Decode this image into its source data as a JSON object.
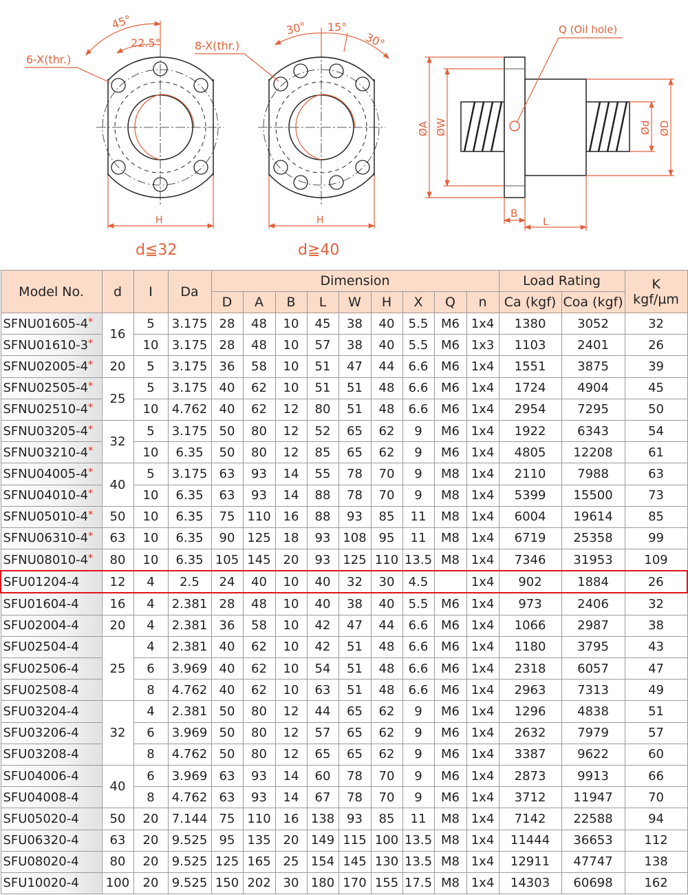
{
  "drawings": {
    "left": {
      "angle_outer": "45°",
      "angle_inner": "22.5°",
      "holes_label": "6-X(thr.)",
      "width_label": "H",
      "condition": "d≦32"
    },
    "right": {
      "angle_left": "30°",
      "angle_mid": "15°",
      "angle_right": "30°",
      "holes_label": "8-X(thr.)",
      "width_label": "H",
      "condition": "d≧40"
    },
    "side": {
      "oil_hole": "Q  (Oil hole)",
      "dia_A": "ØA",
      "dia_W": "ØW",
      "dia_d": "Ød",
      "dia_D": "ØD",
      "len_B": "B",
      "len_L": "L"
    },
    "colors": {
      "dimension": "#e0623c",
      "header": "#fbdcc9",
      "highlight": "#e0121b",
      "star": "#d8261c"
    }
  },
  "table": {
    "headers": {
      "model": "Model No.",
      "d": "d",
      "I": "I",
      "Da": "Da",
      "dimension": "Dimension",
      "load_rating": "Load Rating",
      "K": "K",
      "K_unit": "kgf/µm",
      "dim_cols": [
        "D",
        "A",
        "B",
        "L",
        "W",
        "H",
        "X",
        "Q",
        "n"
      ],
      "load_cols": [
        "Ca (kgf)",
        "Coa (kgf)"
      ]
    },
    "star": "*",
    "highlighted_model": "SFU01204-4",
    "rows": [
      {
        "model": "SFNU01605-4",
        "star": true,
        "d": "16",
        "I": "5",
        "Da": "3.175",
        "D": "28",
        "A": "48",
        "B": "10",
        "L": "45",
        "W": "38",
        "H": "40",
        "X": "5.5",
        "Q": "M6",
        "n": "1x4",
        "Ca": "1380",
        "Coa": "3052",
        "K": "32"
      },
      {
        "model": "SFNU01610-3",
        "star": true,
        "d": "16",
        "I": "10",
        "Da": "3.175",
        "D": "28",
        "A": "48",
        "B": "10",
        "L": "57",
        "W": "38",
        "H": "40",
        "X": "5.5",
        "Q": "M6",
        "n": "1x3",
        "Ca": "1103",
        "Coa": "2401",
        "K": "26"
      },
      {
        "model": "SFNU02005-4",
        "star": true,
        "d": "20",
        "I": "5",
        "Da": "3.175",
        "D": "36",
        "A": "58",
        "B": "10",
        "L": "51",
        "W": "47",
        "H": "44",
        "X": "6.6",
        "Q": "M6",
        "n": "1x4",
        "Ca": "1551",
        "Coa": "3875",
        "K": "39"
      },
      {
        "model": "SFNU02505-4",
        "star": true,
        "d": "25",
        "I": "5",
        "Da": "3.175",
        "D": "40",
        "A": "62",
        "B": "10",
        "L": "51",
        "W": "51",
        "H": "48",
        "X": "6.6",
        "Q": "M6",
        "n": "1x4",
        "Ca": "1724",
        "Coa": "4904",
        "K": "45"
      },
      {
        "model": "SFNU02510-4",
        "star": true,
        "d": "25",
        "I": "10",
        "Da": "4.762",
        "D": "40",
        "A": "62",
        "B": "12",
        "L": "80",
        "W": "51",
        "H": "48",
        "X": "6.6",
        "Q": "M6",
        "n": "1x4",
        "Ca": "2954",
        "Coa": "7295",
        "K": "50"
      },
      {
        "model": "SFNU03205-4",
        "star": true,
        "d": "32",
        "I": "5",
        "Da": "3.175",
        "D": "50",
        "A": "80",
        "B": "12",
        "L": "52",
        "W": "65",
        "H": "62",
        "X": "9",
        "Q": "M6",
        "n": "1x4",
        "Ca": "1922",
        "Coa": "6343",
        "K": "54"
      },
      {
        "model": "SFNU03210-4",
        "star": true,
        "d": "32",
        "I": "10",
        "Da": "6.35",
        "D": "50",
        "A": "80",
        "B": "12",
        "L": "85",
        "W": "65",
        "H": "62",
        "X": "9",
        "Q": "M6",
        "n": "1x4",
        "Ca": "4805",
        "Coa": "12208",
        "K": "61"
      },
      {
        "model": "SFNU04005-4",
        "star": true,
        "d": "40",
        "I": "5",
        "Da": "3.175",
        "D": "63",
        "A": "93",
        "B": "14",
        "L": "55",
        "W": "78",
        "H": "70",
        "X": "9",
        "Q": "M8",
        "n": "1x4",
        "Ca": "2110",
        "Coa": "7988",
        "K": "63"
      },
      {
        "model": "SFNU04010-4",
        "star": true,
        "d": "40",
        "I": "10",
        "Da": "6.35",
        "D": "63",
        "A": "93",
        "B": "14",
        "L": "88",
        "W": "78",
        "H": "70",
        "X": "9",
        "Q": "M8",
        "n": "1x4",
        "Ca": "5399",
        "Coa": "15500",
        "K": "73"
      },
      {
        "model": "SFNU05010-4",
        "star": true,
        "d": "50",
        "I": "10",
        "Da": "6.35",
        "D": "75",
        "A": "110",
        "B": "16",
        "L": "88",
        "W": "93",
        "H": "85",
        "X": "11",
        "Q": "M8",
        "n": "1x4",
        "Ca": "6004",
        "Coa": "19614",
        "K": "85"
      },
      {
        "model": "SFNU06310-4",
        "star": true,
        "d": "63",
        "I": "10",
        "Da": "6.35",
        "D": "90",
        "A": "125",
        "B": "18",
        "L": "93",
        "W": "108",
        "H": "95",
        "X": "11",
        "Q": "M8",
        "n": "1x4",
        "Ca": "6719",
        "Coa": "25358",
        "K": "99"
      },
      {
        "model": "SFNU08010-4",
        "star": true,
        "d": "80",
        "I": "10",
        "Da": "6.35",
        "D": "105",
        "A": "145",
        "B": "20",
        "L": "93",
        "W": "125",
        "H": "110",
        "X": "13.5",
        "Q": "M8",
        "n": "1x4",
        "Ca": "7346",
        "Coa": "31953",
        "K": "109"
      },
      {
        "model": "SFU01204-4",
        "star": false,
        "d": "12",
        "I": "4",
        "Da": "2.5",
        "D": "24",
        "A": "40",
        "B": "10",
        "L": "40",
        "W": "32",
        "H": "30",
        "X": "4.5",
        "Q": "",
        "n": "1x4",
        "Ca": "902",
        "Coa": "1884",
        "K": "26"
      },
      {
        "model": "SFU01604-4",
        "star": false,
        "d": "16",
        "I": "4",
        "Da": "2.381",
        "D": "28",
        "A": "48",
        "B": "10",
        "L": "40",
        "W": "38",
        "H": "40",
        "X": "5.5",
        "Q": "M6",
        "n": "1x4",
        "Ca": "973",
        "Coa": "2406",
        "K": "32"
      },
      {
        "model": "SFU02004-4",
        "star": false,
        "d": "20",
        "I": "4",
        "Da": "2.381",
        "D": "36",
        "A": "58",
        "B": "10",
        "L": "42",
        "W": "47",
        "H": "44",
        "X": "6.6",
        "Q": "M6",
        "n": "1x4",
        "Ca": "1066",
        "Coa": "2987",
        "K": "38"
      },
      {
        "model": "SFU02504-4",
        "star": false,
        "d": "25",
        "I": "4",
        "Da": "2.381",
        "D": "40",
        "A": "62",
        "B": "10",
        "L": "42",
        "W": "51",
        "H": "48",
        "X": "6.6",
        "Q": "M6",
        "n": "1x4",
        "Ca": "1180",
        "Coa": "3795",
        "K": "43"
      },
      {
        "model": "SFU02506-4",
        "star": false,
        "d": "25",
        "I": "6",
        "Da": "3.969",
        "D": "40",
        "A": "62",
        "B": "10",
        "L": "54",
        "W": "51",
        "H": "48",
        "X": "6.6",
        "Q": "M6",
        "n": "1x4",
        "Ca": "2318",
        "Coa": "6057",
        "K": "47"
      },
      {
        "model": "SFU02508-4",
        "star": false,
        "d": "25",
        "I": "8",
        "Da": "4.762",
        "D": "40",
        "A": "62",
        "B": "10",
        "L": "63",
        "W": "51",
        "H": "48",
        "X": "6.6",
        "Q": "M6",
        "n": "1x4",
        "Ca": "2963",
        "Coa": "7313",
        "K": "49"
      },
      {
        "model": "SFU03204-4",
        "star": false,
        "d": "32",
        "I": "4",
        "Da": "2.381",
        "D": "50",
        "A": "80",
        "B": "12",
        "L": "44",
        "W": "65",
        "H": "62",
        "X": "9",
        "Q": "M6",
        "n": "1x4",
        "Ca": "1296",
        "Coa": "4838",
        "K": "51"
      },
      {
        "model": "SFU03206-4",
        "star": false,
        "d": "32",
        "I": "6",
        "Da": "3.969",
        "D": "50",
        "A": "80",
        "B": "12",
        "L": "57",
        "W": "65",
        "H": "62",
        "X": "9",
        "Q": "M6",
        "n": "1x4",
        "Ca": "2632",
        "Coa": "7979",
        "K": "57"
      },
      {
        "model": "SFU03208-4",
        "star": false,
        "d": "32",
        "I": "8",
        "Da": "4.762",
        "D": "50",
        "A": "80",
        "B": "12",
        "L": "65",
        "W": "65",
        "H": "62",
        "X": "9",
        "Q": "M6",
        "n": "1x4",
        "Ca": "3387",
        "Coa": "9622",
        "K": "60"
      },
      {
        "model": "SFU04006-4",
        "star": false,
        "d": "40",
        "I": "6",
        "Da": "3.969",
        "D": "63",
        "A": "93",
        "B": "14",
        "L": "60",
        "W": "78",
        "H": "70",
        "X": "9",
        "Q": "M6",
        "n": "1x4",
        "Ca": "2873",
        "Coa": "9913",
        "K": "66"
      },
      {
        "model": "SFU04008-4",
        "star": false,
        "d": "40",
        "I": "8",
        "Da": "4.762",
        "D": "63",
        "A": "93",
        "B": "14",
        "L": "67",
        "W": "78",
        "H": "70",
        "X": "9",
        "Q": "M6",
        "n": "1x4",
        "Ca": "3712",
        "Coa": "11947",
        "K": "70"
      },
      {
        "model": "SFU05020-4",
        "star": false,
        "d": "50",
        "I": "20",
        "Da": "7.144",
        "D": "75",
        "A": "110",
        "B": "16",
        "L": "138",
        "W": "93",
        "H": "85",
        "X": "11",
        "Q": "M8",
        "n": "1x4",
        "Ca": "7142",
        "Coa": "22588",
        "K": "94"
      },
      {
        "model": "SFU06320-4",
        "star": false,
        "d": "63",
        "I": "20",
        "Da": "9.525",
        "D": "95",
        "A": "135",
        "B": "20",
        "L": "149",
        "W": "115",
        "H": "100",
        "X": "13.5",
        "Q": "M8",
        "n": "1x4",
        "Ca": "11444",
        "Coa": "36653",
        "K": "112"
      },
      {
        "model": "SFU08020-4",
        "star": false,
        "d": "80",
        "I": "20",
        "Da": "9.525",
        "D": "125",
        "A": "165",
        "B": "25",
        "L": "154",
        "W": "145",
        "H": "130",
        "X": "13.5",
        "Q": "M8",
        "n": "1x4",
        "Ca": "12911",
        "Coa": "47747",
        "K": "138"
      },
      {
        "model": "SFU10020-4",
        "star": false,
        "d": "100",
        "I": "20",
        "Da": "9.525",
        "D": "150",
        "A": "202",
        "B": "30",
        "L": "180",
        "W": "170",
        "H": "155",
        "X": "17.5",
        "Q": "M8",
        "n": "1x4",
        "Ca": "14303",
        "Coa": "60698",
        "K": "162"
      }
    ]
  }
}
